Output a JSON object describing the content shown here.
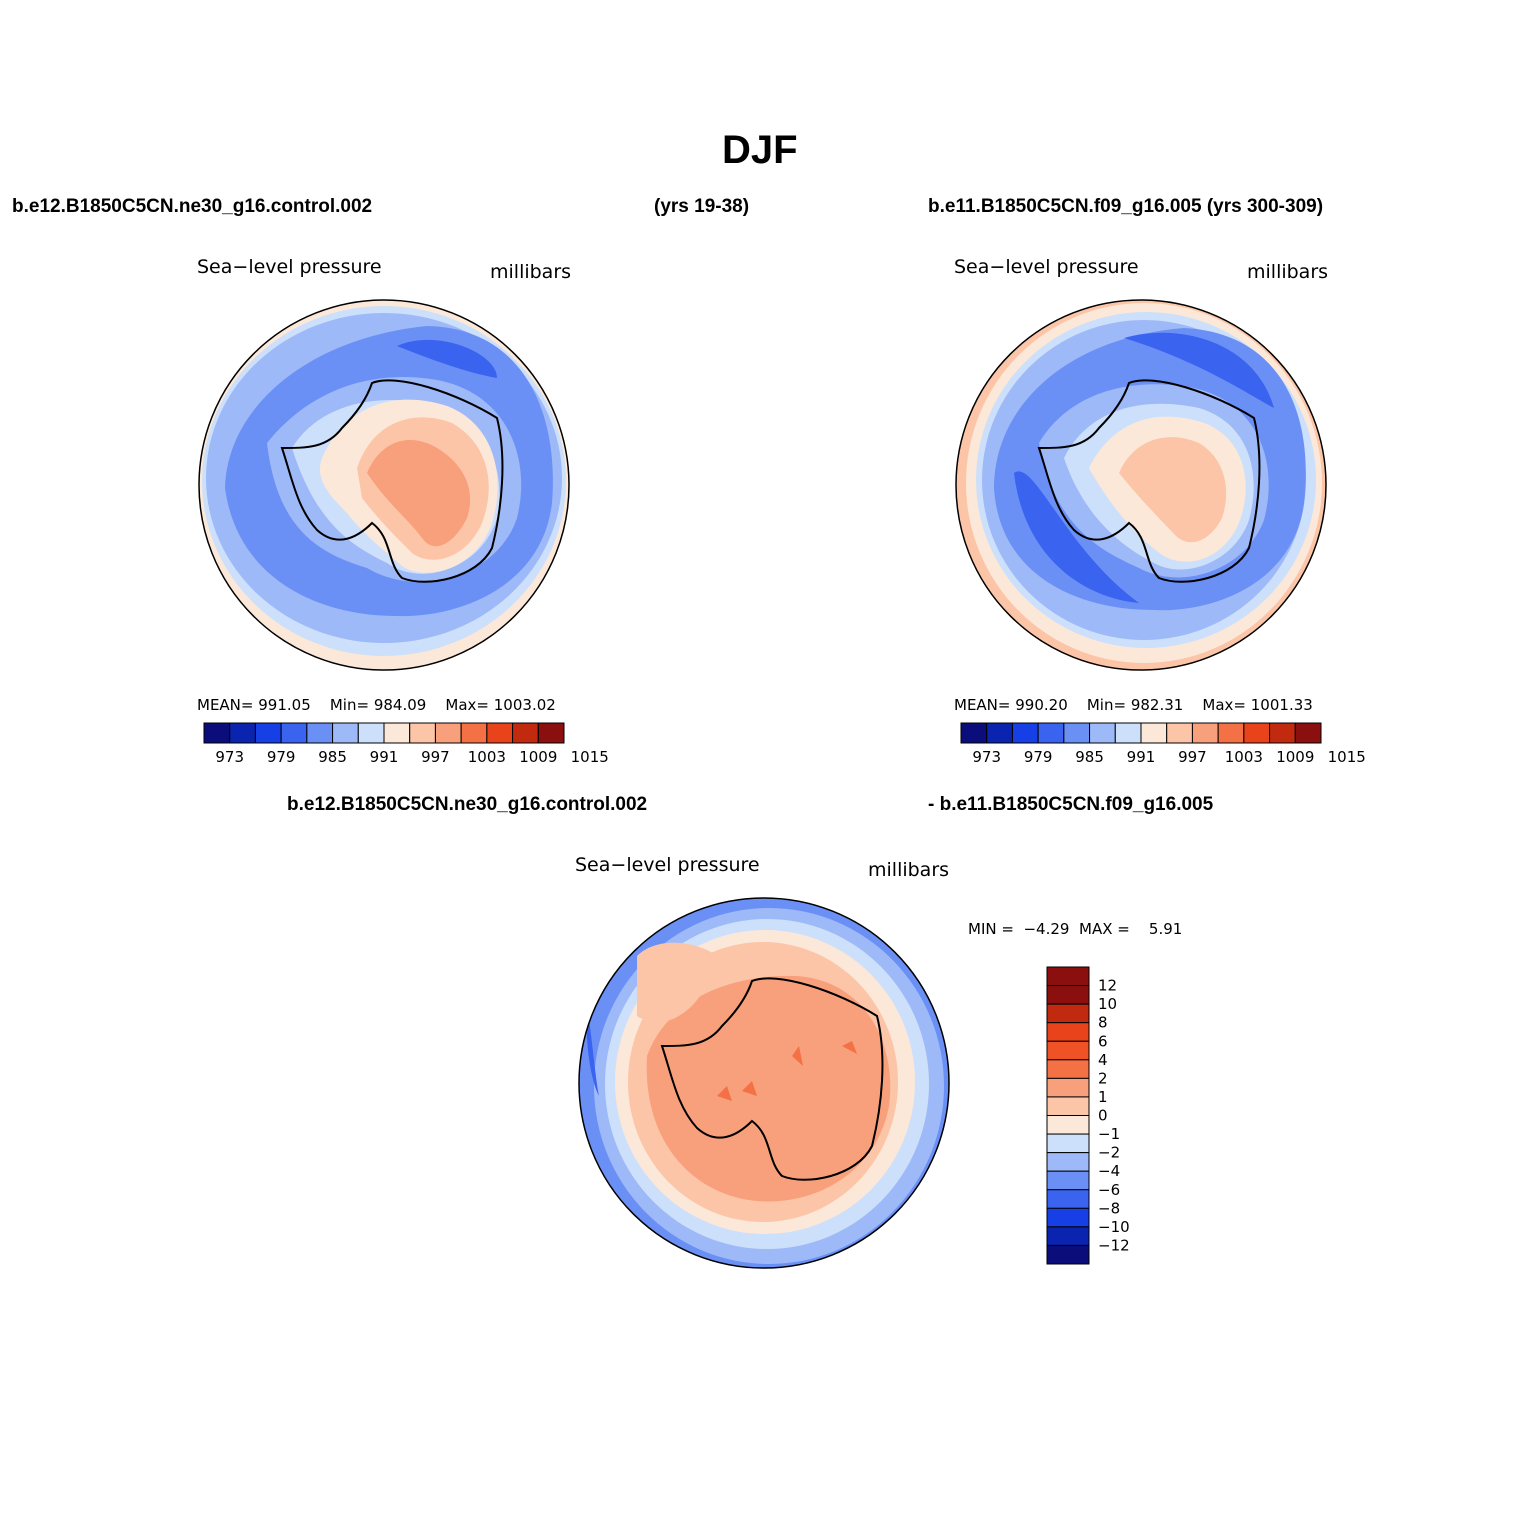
{
  "title": "DJF",
  "header": {
    "case1": "b.e12.B1850C5CN.ne30_g16.control.002",
    "years1": "(yrs 19-38)",
    "case2_with_years": "b.e11.B1850C5CN.f09_g16.005 (yrs 300-309)",
    "diff_case1": "b.e12.B1850C5CN.ne30_g16.control.002",
    "diff_case2": "- b.e11.B1850C5CN.f09_g16.005"
  },
  "panels": [
    {
      "variable": "Sea−level pressure",
      "units": "millibars",
      "stats": {
        "mean_label": "MEAN=",
        "mean": "991.05",
        "min_label": "Min=",
        "min": "984.09",
        "max_label": "Max=",
        "max": "1003.02"
      }
    },
    {
      "variable": "Sea−level pressure",
      "units": "millibars",
      "stats": {
        "mean_label": "MEAN=",
        "mean": "990.20",
        "min_label": "Min=",
        "min": "982.31",
        "max_label": "Max=",
        "max": "1001.33"
      }
    },
    {
      "variable": "Sea−level pressure",
      "units": "millibars",
      "stats": {
        "min_label": "MIN =",
        "min": "−4.29",
        "max_label": "MAX =",
        "max": "5.91"
      }
    }
  ],
  "colorbar_top": {
    "colors": [
      "#0b0e7a",
      "#0a24b0",
      "#1640e6",
      "#3a64f0",
      "#6b90f5",
      "#9eb9f7",
      "#cde0fb",
      "#fce8d8",
      "#fcc5a8",
      "#f8a07b",
      "#f47045",
      "#e8431b",
      "#c22a0f",
      "#8b0f0f"
    ],
    "labels": [
      "973",
      "979",
      "985",
      "991",
      "997",
      "1003",
      "1009",
      "1015"
    ]
  },
  "colorbar_diff": {
    "colors": [
      "#0b0e7a",
      "#0a24b0",
      "#1640e6",
      "#3a64f0",
      "#6b90f5",
      "#9eb9f7",
      "#cde0fb",
      "#fce8d8",
      "#fcc5a8",
      "#f8a07b",
      "#f47045",
      "#ee5225",
      "#e8431b",
      "#c22a0f",
      "#8b0f0f"
    ],
    "labels": [
      "12",
      "10",
      "8",
      "6",
      "4",
      "2",
      "1",
      "0",
      "−1",
      "−2",
      "−4",
      "−6",
      "−8",
      "−10",
      "−12"
    ]
  },
  "chart_data": {
    "type": "heatmap",
    "projection": "south polar stereographic",
    "season": "DJF",
    "maps": [
      {
        "role": "case 1",
        "field": "Sea-level pressure",
        "units": "millibars",
        "mean": 991.05,
        "min": 984.09,
        "max": 1003.02,
        "contour_levels": [
          973,
          976,
          979,
          982,
          985,
          988,
          991,
          994,
          997,
          1000,
          1003,
          1006,
          1009,
          1012,
          1015
        ]
      },
      {
        "role": "case 2",
        "field": "Sea-level pressure",
        "units": "millibars",
        "mean": 990.2,
        "min": 982.31,
        "max": 1001.33,
        "contour_levels": [
          973,
          976,
          979,
          982,
          985,
          988,
          991,
          994,
          997,
          1000,
          1003,
          1006,
          1009,
          1012,
          1015
        ]
      },
      {
        "role": "difference",
        "field": "Sea-level pressure",
        "units": "millibars",
        "min": -4.29,
        "max": 5.91,
        "contour_levels": [
          -12,
          -10,
          -8,
          -6,
          -4,
          -2,
          -1,
          0,
          1,
          2,
          4,
          6,
          8,
          10,
          12
        ]
      }
    ]
  }
}
